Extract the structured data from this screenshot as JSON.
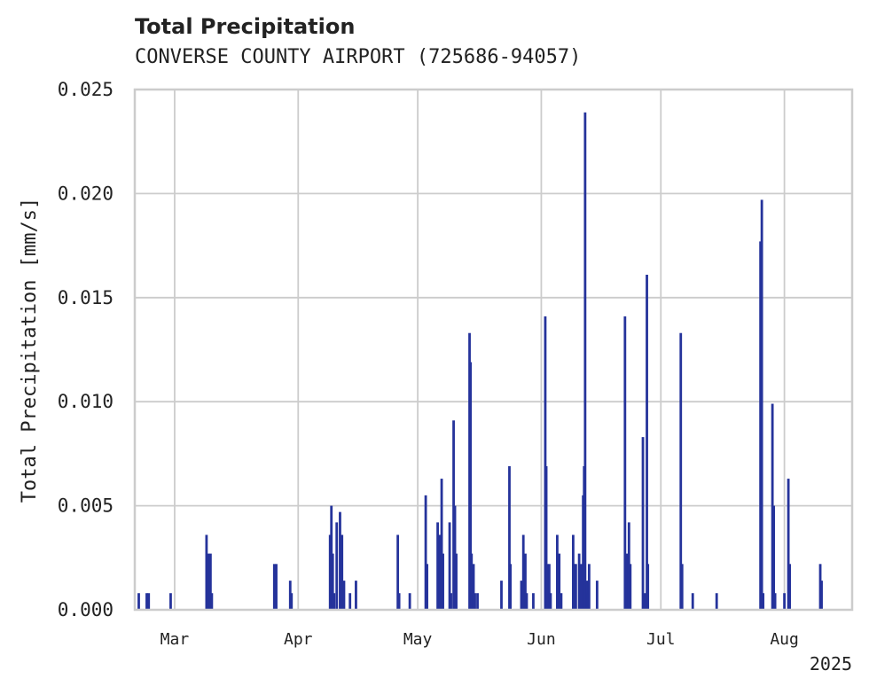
{
  "chart_data": {
    "type": "bar",
    "title": "Total Precipitation",
    "subtitle": "CONVERSE COUNTY AIRPORT (725686-94057)",
    "ylabel": "Total Precipitation [mm/s]",
    "xlabel": "",
    "year_label": "2025",
    "ylim": [
      0,
      0.025
    ],
    "xlim": [
      "2025-02-19",
      "2025-08-18"
    ],
    "yticks": [
      0.0,
      0.005,
      0.01,
      0.015,
      0.02,
      0.025
    ],
    "ytick_labels": [
      "0.000",
      "0.005",
      "0.010",
      "0.015",
      "0.020",
      "0.025"
    ],
    "xticks": [
      "2025-03-01",
      "2025-04-01",
      "2025-05-01",
      "2025-06-01",
      "2025-07-01",
      "2025-08-01"
    ],
    "xtick_labels": [
      "Mar",
      "Apr",
      "May",
      "Jun",
      "Jul",
      "Aug"
    ],
    "grid": true,
    "bar_color": "#25339b",
    "series": [
      {
        "points": [
          {
            "x": "2025-02-20",
            "y": 0.0008
          },
          {
            "x": "2025-02-22",
            "y": 0.0008
          },
          {
            "x": "2025-02-22T12:00",
            "y": 0.0008
          },
          {
            "x": "2025-02-28",
            "y": 0.0008
          },
          {
            "x": "2025-03-09",
            "y": 0.0036
          },
          {
            "x": "2025-03-09T12:00",
            "y": 0.0027
          },
          {
            "x": "2025-03-10",
            "y": 0.0027
          },
          {
            "x": "2025-03-10T08:00",
            "y": 0.0008
          },
          {
            "x": "2025-03-26",
            "y": 0.0022
          },
          {
            "x": "2025-03-26T12:00",
            "y": 0.0022
          },
          {
            "x": "2025-03-30",
            "y": 0.0014
          },
          {
            "x": "2025-03-30T08:00",
            "y": 0.0008
          },
          {
            "x": "2025-04-09",
            "y": 0.0036
          },
          {
            "x": "2025-04-09T08:00",
            "y": 0.005
          },
          {
            "x": "2025-04-09T16:00",
            "y": 0.0027
          },
          {
            "x": "2025-04-10",
            "y": 0.0008
          },
          {
            "x": "2025-04-10T16:00",
            "y": 0.0042
          },
          {
            "x": "2025-04-11T12:00",
            "y": 0.0047
          },
          {
            "x": "2025-04-12",
            "y": 0.0036
          },
          {
            "x": "2025-04-12T12:00",
            "y": 0.0014
          },
          {
            "x": "2025-04-14",
            "y": 0.0008
          },
          {
            "x": "2025-04-15T12:00",
            "y": 0.0014
          },
          {
            "x": "2025-04-26",
            "y": 0.0036
          },
          {
            "x": "2025-04-26T08:00",
            "y": 0.0008
          },
          {
            "x": "2025-04-29",
            "y": 0.0008
          },
          {
            "x": "2025-05-03",
            "y": 0.0055
          },
          {
            "x": "2025-05-03T08:00",
            "y": 0.0022
          },
          {
            "x": "2025-05-06",
            "y": 0.0042
          },
          {
            "x": "2025-05-06T12:00",
            "y": 0.0036
          },
          {
            "x": "2025-05-07",
            "y": 0.0063
          },
          {
            "x": "2025-05-07T08:00",
            "y": 0.0027
          },
          {
            "x": "2025-05-09",
            "y": 0.0042
          },
          {
            "x": "2025-05-09T08:00",
            "y": 0.0008
          },
          {
            "x": "2025-05-10",
            "y": 0.0091
          },
          {
            "x": "2025-05-10T08:00",
            "y": 0.005
          },
          {
            "x": "2025-05-10T16:00",
            "y": 0.0027
          },
          {
            "x": "2025-05-14",
            "y": 0.0133
          },
          {
            "x": "2025-05-14T06:00",
            "y": 0.0119
          },
          {
            "x": "2025-05-14T12:00",
            "y": 0.0027
          },
          {
            "x": "2025-05-15",
            "y": 0.0022
          },
          {
            "x": "2025-05-15T08:00",
            "y": 0.0008
          },
          {
            "x": "2025-05-16",
            "y": 0.0008
          },
          {
            "x": "2025-05-22",
            "y": 0.0014
          },
          {
            "x": "2025-05-24",
            "y": 0.0069
          },
          {
            "x": "2025-05-24T06:00",
            "y": 0.0022
          },
          {
            "x": "2025-05-27",
            "y": 0.0014
          },
          {
            "x": "2025-05-27T12:00",
            "y": 0.0036
          },
          {
            "x": "2025-05-28",
            "y": 0.0027
          },
          {
            "x": "2025-05-28T08:00",
            "y": 0.0008
          },
          {
            "x": "2025-05-30",
            "y": 0.0008
          },
          {
            "x": "2025-06-02",
            "y": 0.0141
          },
          {
            "x": "2025-06-02T06:00",
            "y": 0.0069
          },
          {
            "x": "2025-06-02T12:00",
            "y": 0.0022
          },
          {
            "x": "2025-06-03",
            "y": 0.0022
          },
          {
            "x": "2025-06-03T08:00",
            "y": 0.0008
          },
          {
            "x": "2025-06-05",
            "y": 0.0036
          },
          {
            "x": "2025-06-05T12:00",
            "y": 0.0027
          },
          {
            "x": "2025-06-06",
            "y": 0.0008
          },
          {
            "x": "2025-06-09",
            "y": 0.0036
          },
          {
            "x": "2025-06-09T08:00",
            "y": 0.0022
          },
          {
            "x": "2025-06-09T16:00",
            "y": 0.0022
          },
          {
            "x": "2025-06-10T12:00",
            "y": 0.0027
          },
          {
            "x": "2025-06-11",
            "y": 0.0022
          },
          {
            "x": "2025-06-11T12:00",
            "y": 0.0055
          },
          {
            "x": "2025-06-11T18:00",
            "y": 0.0069
          },
          {
            "x": "2025-06-12",
            "y": 0.0239
          },
          {
            "x": "2025-06-12T12:00",
            "y": 0.0014
          },
          {
            "x": "2025-06-12T18:00",
            "y": 0.0008
          },
          {
            "x": "2025-06-13",
            "y": 0.0022
          },
          {
            "x": "2025-06-15",
            "y": 0.0014
          },
          {
            "x": "2025-06-22",
            "y": 0.0141
          },
          {
            "x": "2025-06-22T12:00",
            "y": 0.0027
          },
          {
            "x": "2025-06-23",
            "y": 0.0042
          },
          {
            "x": "2025-06-23T08:00",
            "y": 0.0022
          },
          {
            "x": "2025-06-26T12:00",
            "y": 0.0083
          },
          {
            "x": "2025-06-27",
            "y": 0.0008
          },
          {
            "x": "2025-06-27T12:00",
            "y": 0.0161
          },
          {
            "x": "2025-06-27T18:00",
            "y": 0.0022
          },
          {
            "x": "2025-07-06",
            "y": 0.0133
          },
          {
            "x": "2025-07-06T08:00",
            "y": 0.0022
          },
          {
            "x": "2025-07-09",
            "y": 0.0008
          },
          {
            "x": "2025-07-15",
            "y": 0.0008
          },
          {
            "x": "2025-07-26",
            "y": 0.0177
          },
          {
            "x": "2025-07-26T08:00",
            "y": 0.0197
          },
          {
            "x": "2025-07-26T16:00",
            "y": 0.0008
          },
          {
            "x": "2025-07-29",
            "y": 0.0099
          },
          {
            "x": "2025-07-29T08:00",
            "y": 0.005
          },
          {
            "x": "2025-07-29T16:00",
            "y": 0.0008
          },
          {
            "x": "2025-08-01",
            "y": 0.0008
          },
          {
            "x": "2025-08-02",
            "y": 0.0063
          },
          {
            "x": "2025-08-02T08:00",
            "y": 0.0022
          },
          {
            "x": "2025-08-10",
            "y": 0.0022
          },
          {
            "x": "2025-08-10T08:00",
            "y": 0.0014
          }
        ]
      }
    ]
  }
}
